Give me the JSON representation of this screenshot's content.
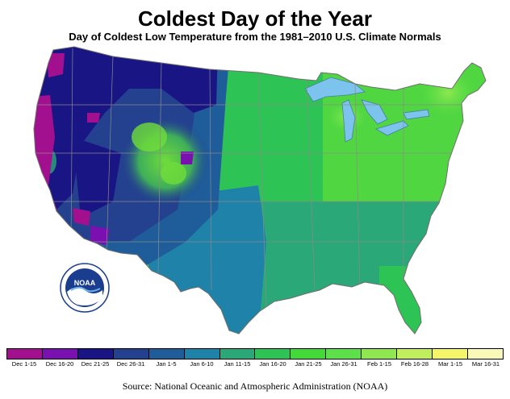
{
  "title": "Coldest Day of the Year",
  "subtitle": "Day of Coldest Low Temperature from the 1981–2010 U.S. Climate Normals",
  "logo_text": "NOAA",
  "legend": [
    {
      "label": "Dec 1-15",
      "color": "#a3108f"
    },
    {
      "label": "Dec 16-20",
      "color": "#7a10b0"
    },
    {
      "label": "Dec 21-25",
      "color": "#1a1585"
    },
    {
      "label": "Dec 26-31",
      "color": "#23418f"
    },
    {
      "label": "Jan 1-5",
      "color": "#1f5c9a"
    },
    {
      "label": "Jan 6-10",
      "color": "#1f82a8"
    },
    {
      "label": "Jan 11-15",
      "color": "#2aa878"
    },
    {
      "label": "Jan 16-20",
      "color": "#2ec455"
    },
    {
      "label": "Jan 21-25",
      "color": "#43d938"
    },
    {
      "label": "Jan 26-31",
      "color": "#5ee04a"
    },
    {
      "label": "Feb 1-15",
      "color": "#8fe84f"
    },
    {
      "label": "Feb 16-28",
      "color": "#c1ee5c"
    },
    {
      "label": "Mar 1-15",
      "color": "#f5f56a"
    },
    {
      "label": "Mar 16-31",
      "color": "#fafab8"
    }
  ],
  "source": "Source: National Oceanic and Atmospheric Administration (NOAA)"
}
